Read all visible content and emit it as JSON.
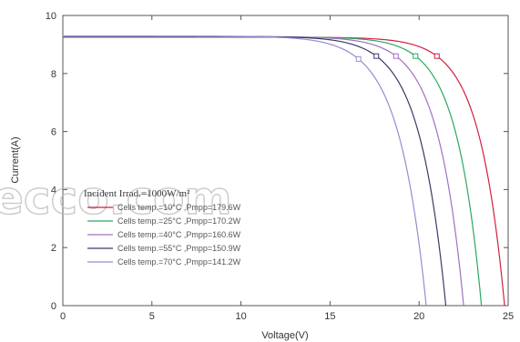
{
  "chart_data": {
    "type": "line",
    "xlabel": "Voltage(V)",
    "ylabel": "Current(A)",
    "xlim": [
      0,
      25
    ],
    "ylim": [
      0,
      10
    ],
    "xticks": [
      0,
      5,
      10,
      15,
      20,
      25
    ],
    "yticks": [
      0,
      2,
      4,
      6,
      8,
      10
    ],
    "grid": false,
    "annotation": "Incident Irrad.=1000W/m²",
    "watermark": "ecco.com",
    "legend_position": "lower-left",
    "series": [
      {
        "name": "Cells temp.=10°C ,Pmpp=179.6W",
        "color": "#d02040",
        "isc": 9.25,
        "voc": 24.8,
        "mpp": [
          21.0,
          8.6
        ]
      },
      {
        "name": "Cells temp.=25°C ,Pmpp=170.2W",
        "color": "#2aa860",
        "isc": 9.26,
        "voc": 23.5,
        "mpp": [
          19.8,
          8.6
        ]
      },
      {
        "name": "Cells temp.=40°C ,Pmpp=160.6W",
        "color": "#a070c0",
        "isc": 9.27,
        "voc": 22.5,
        "mpp": [
          18.7,
          8.6
        ]
      },
      {
        "name": "Cells temp.=55°C ,Pmpp=150.9W",
        "color": "#3a3a6a",
        "isc": 9.28,
        "voc": 21.5,
        "mpp": [
          17.6,
          8.6
        ]
      },
      {
        "name": "Cells temp.=70°C ,Pmpp=141.2W",
        "color": "#9a8ad0",
        "isc": 9.29,
        "voc": 20.4,
        "mpp": [
          16.6,
          8.5
        ]
      }
    ]
  }
}
